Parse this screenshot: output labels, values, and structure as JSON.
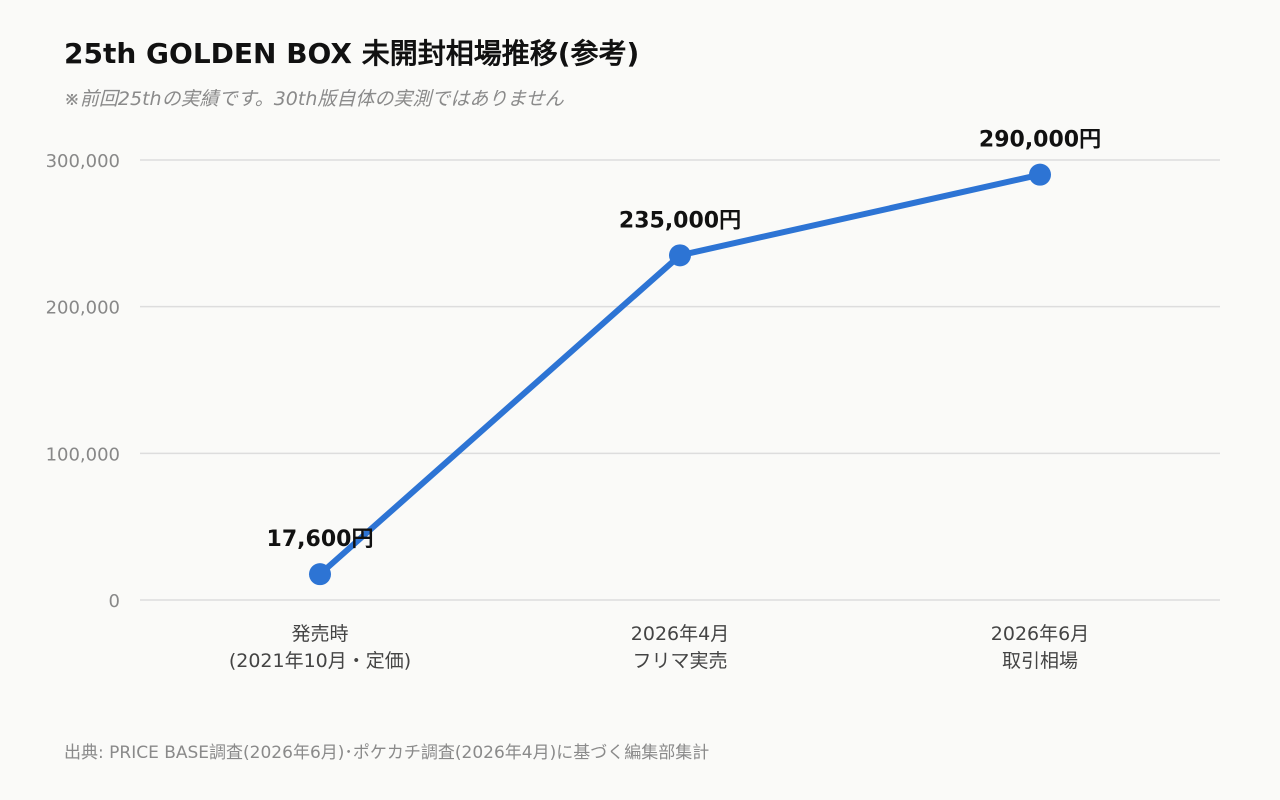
{
  "title": "25th GOLDEN BOX 未開封相場推移(参考)",
  "subtitle": "※前回25thの実績です。30th版自体の実測ではありません",
  "source": "出典: PRICE BASE調査(2026年6月)･ポケカチ調査(2026年4月)に基づく編集部集計",
  "colors": {
    "line": "#2d74d4",
    "grid": "#dddddd",
    "tick_text": "#888888",
    "category_text": "#444444",
    "label_text": "#111111"
  },
  "chart_data": {
    "type": "line",
    "title": "25th GOLDEN BOX 未開封相場推移(参考)",
    "categories": [
      [
        "発売時",
        "(2021年10月・定価)"
      ],
      [
        "2026年4月",
        "フリマ実売"
      ],
      [
        "2026年6月",
        "取引相場"
      ]
    ],
    "values": [
      17600,
      235000,
      290000
    ],
    "data_labels": [
      "17,600円",
      "235,000円",
      "290,000円"
    ],
    "ylim": [
      0,
      300000
    ],
    "yticks": [
      0,
      100000,
      200000,
      300000
    ],
    "ytick_labels": [
      "0",
      "100,000",
      "200,000",
      "300,000"
    ],
    "xlabel": "",
    "ylabel": "",
    "grid": true
  }
}
